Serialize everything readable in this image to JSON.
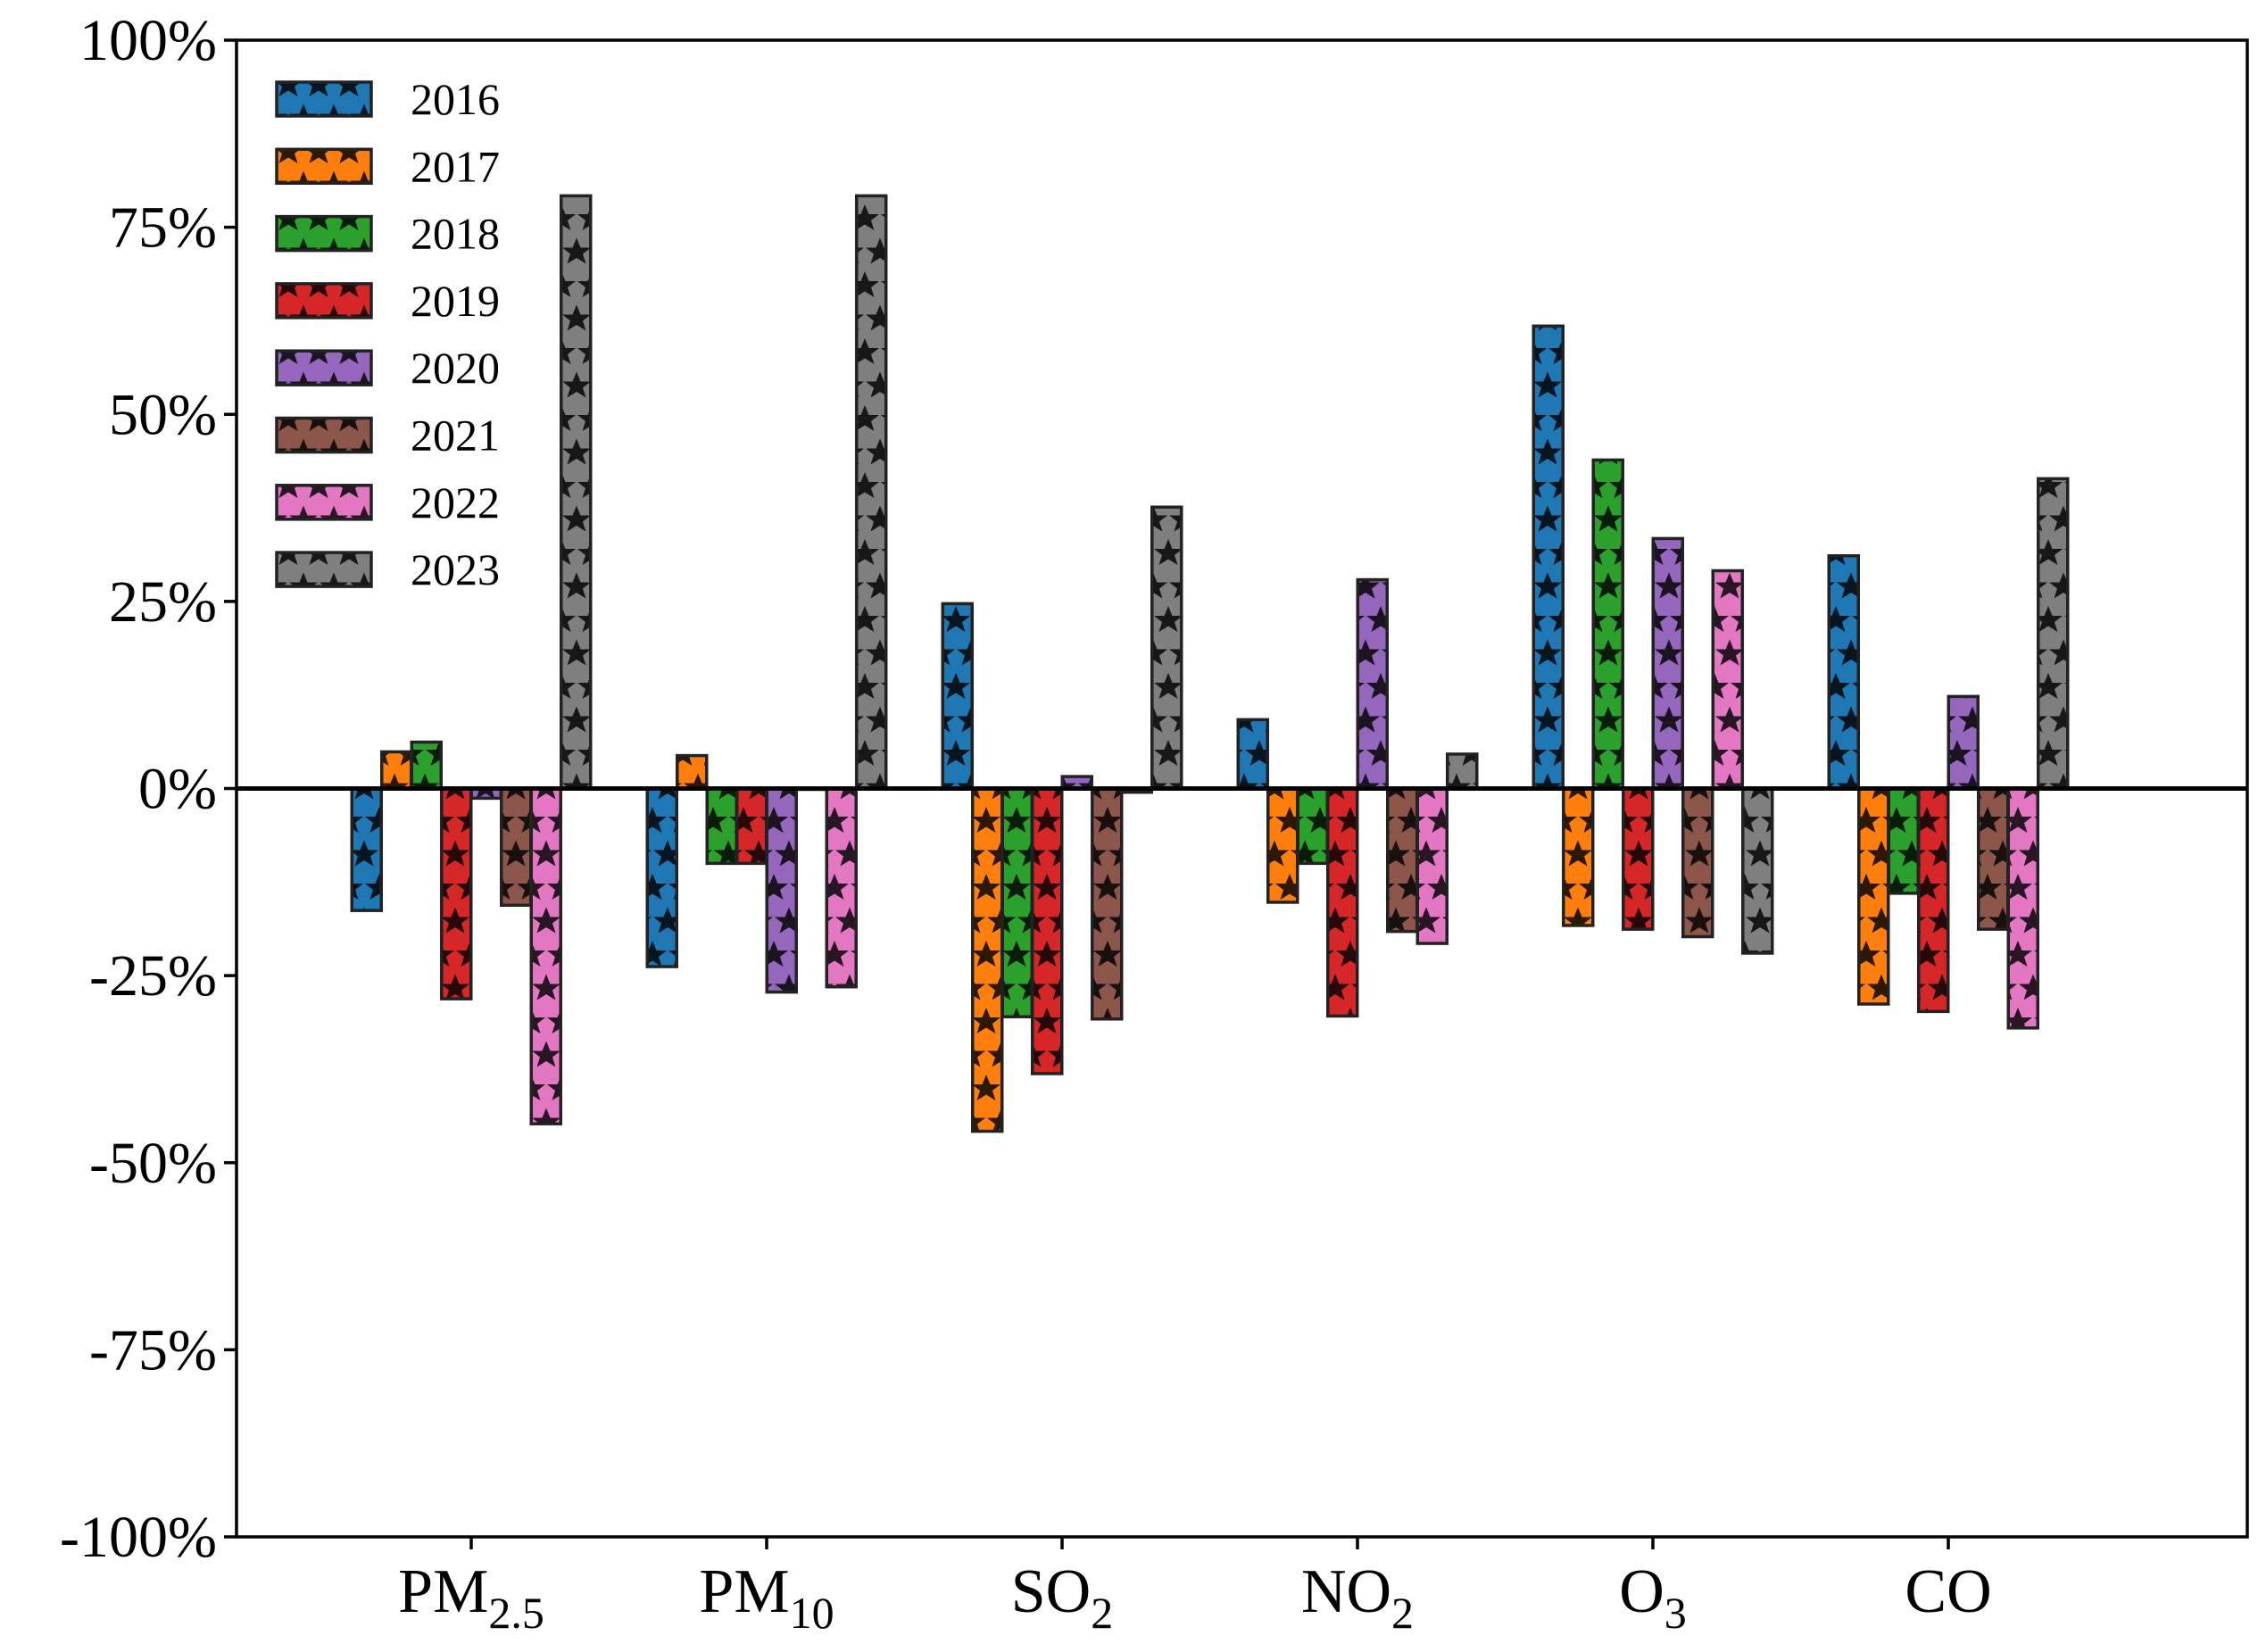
{
  "chart_data": {
    "type": "bar",
    "title": "",
    "xlabel": "",
    "ylabel": "",
    "ylim": [
      -100,
      100
    ],
    "yticks": [
      100,
      75,
      50,
      25,
      0,
      -25,
      -50,
      -75,
      -100
    ],
    "ytick_labels": [
      "100%",
      "75%",
      "50%",
      "25%",
      "0%",
      "-25%",
      "-50%",
      "-75%",
      "-100%"
    ],
    "categories": [
      {
        "base": "PM",
        "sub": "2.5"
      },
      {
        "base": "PM",
        "sub": "10"
      },
      {
        "base": "SO",
        "sub": "2"
      },
      {
        "base": "NO",
        "sub": "2"
      },
      {
        "base": "O",
        "sub": "3"
      },
      {
        "base": "CO",
        "sub": ""
      }
    ],
    "legend_position": "top-left",
    "hatch": "stars",
    "series": [
      {
        "name": "2016",
        "color": "#1f77b4",
        "values": [
          -16.3,
          -23.8,
          24.7,
          9.2,
          61.8,
          31.1
        ]
      },
      {
        "name": "2017",
        "color": "#ff7f0e",
        "values": [
          4.9,
          4.4,
          -45.8,
          -15.2,
          -18.3,
          -28.8
        ]
      },
      {
        "name": "2018",
        "color": "#2ca02c",
        "values": [
          6.2,
          -10.0,
          -30.5,
          -10.0,
          43.9,
          -14.0
        ]
      },
      {
        "name": "2019",
        "color": "#d62728",
        "values": [
          -28.1,
          -10.0,
          -38.1,
          -30.4,
          -18.8,
          -29.8
        ]
      },
      {
        "name": "2020",
        "color": "#9467bd",
        "values": [
          -1.3,
          -27.2,
          1.6,
          27.9,
          33.4,
          12.3
        ]
      },
      {
        "name": "2021",
        "color": "#8c564b",
        "values": [
          -15.6,
          0.0,
          -30.8,
          -19.1,
          -19.8,
          -18.8
        ]
      },
      {
        "name": "2022",
        "color": "#e377c2",
        "values": [
          -44.8,
          -26.5,
          -0.5,
          -20.7,
          29.1,
          -32.0
        ]
      },
      {
        "name": "2023",
        "color": "#7f7f7f",
        "values": [
          79.2,
          79.2,
          37.6,
          4.6,
          -22.0,
          41.4
        ]
      }
    ]
  }
}
